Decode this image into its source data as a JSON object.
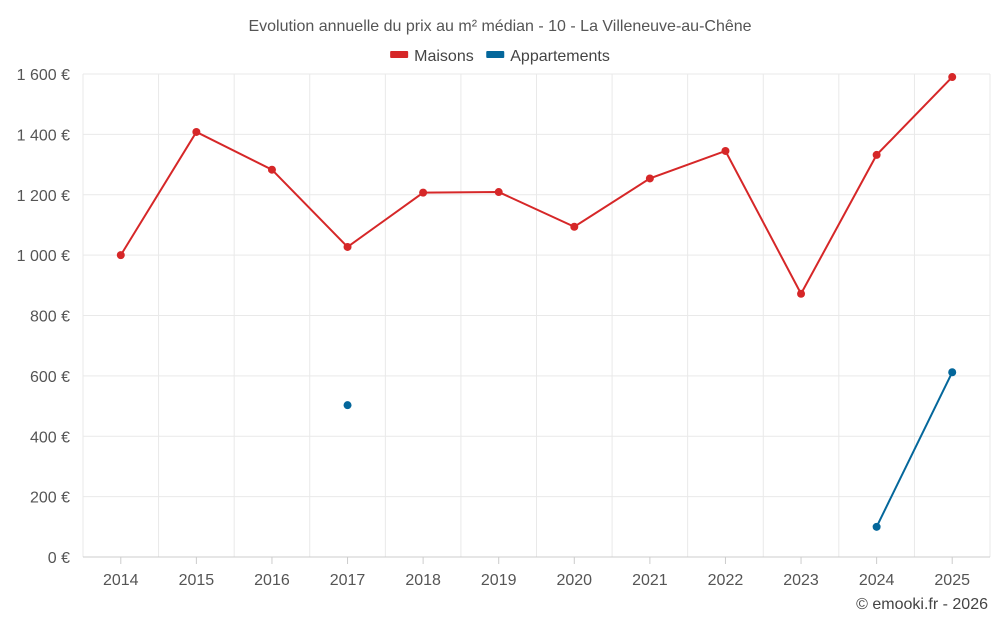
{
  "chart_data": {
    "type": "line",
    "title": "Evolution annuelle du prix au m² médian - 10 - La Villeneuve-au-Chêne",
    "categories": [
      "2014",
      "2015",
      "2016",
      "2017",
      "2018",
      "2019",
      "2020",
      "2021",
      "2022",
      "2023",
      "2024",
      "2025"
    ],
    "y_tick_labels": [
      "0 €",
      "200 €",
      "400 €",
      "600 €",
      "800 €",
      "1 000 €",
      "1 200 €",
      "1 400 €",
      "1 600 €"
    ],
    "y_ticks": [
      0,
      200,
      400,
      600,
      800,
      1000,
      1200,
      1400,
      1600
    ],
    "ylim": [
      0,
      1600
    ],
    "grid": true,
    "legend_position": "top-center",
    "series": [
      {
        "name": "Maisons",
        "color": "#d62728",
        "values": [
          1000,
          1408,
          1283,
          1027,
          1207,
          1209,
          1094,
          1254,
          1345,
          872,
          1332,
          1590
        ]
      },
      {
        "name": "Appartements",
        "color": "#04679b",
        "values": [
          null,
          null,
          null,
          503,
          null,
          null,
          null,
          null,
          null,
          null,
          100,
          612
        ]
      }
    ],
    "credit": "© emooki.fr - 2026"
  }
}
